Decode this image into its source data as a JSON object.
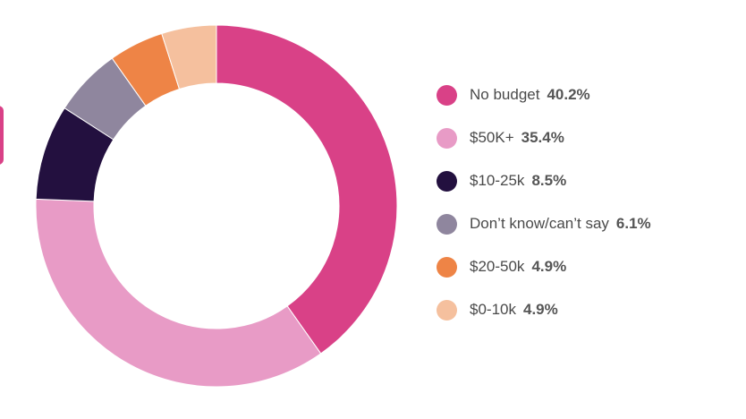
{
  "chart_data": {
    "type": "pie",
    "variant": "donut",
    "title": "",
    "unit": "%",
    "start_angle_deg": 0,
    "direction": "clockwise",
    "legend_position": "right",
    "slices": [
      {
        "label": "No budget",
        "value": 40.2,
        "display": "40.2%",
        "color": "#d94187"
      },
      {
        "label": "$50K+",
        "value": 35.4,
        "display": "35.4%",
        "color": "#e89bc6"
      },
      {
        "label": "$10-25k",
        "value": 8.5,
        "display": "8.5%",
        "color": "#23103f"
      },
      {
        "label": "Don’t know/can’t say",
        "value": 6.1,
        "display": "6.1%",
        "color": "#8f869e"
      },
      {
        "label": "$20-50k",
        "value": 4.9,
        "display": "4.9%",
        "color": "#ee8446"
      },
      {
        "label": "$0-10k",
        "value": 4.9,
        "display": "4.9%",
        "color": "#f5c09e"
      }
    ]
  }
}
